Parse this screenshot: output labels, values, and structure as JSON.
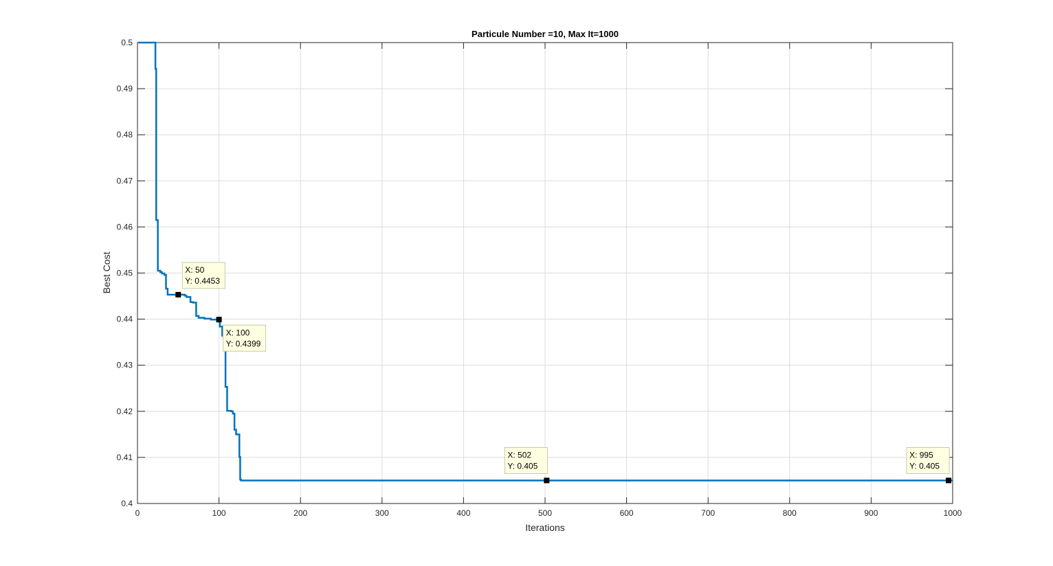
{
  "chart_data": {
    "type": "line",
    "title": "Particule Number =10, Max It=1000",
    "xlabel": "Iterations",
    "ylabel": "Best Cost",
    "xlim": [
      0,
      1000
    ],
    "ylim": [
      0.4,
      0.5
    ],
    "xticks": [
      0,
      100,
      200,
      300,
      400,
      500,
      600,
      700,
      800,
      900,
      1000
    ],
    "yticks": [
      0.4,
      0.41,
      0.42,
      0.43,
      0.44,
      0.45,
      0.46,
      0.47,
      0.48,
      0.49,
      0.5
    ],
    "xtick_labels": [
      "0",
      "100",
      "200",
      "300",
      "400",
      "500",
      "600",
      "700",
      "800",
      "900",
      "1000"
    ],
    "ytick_labels": [
      "0.4",
      "0.41",
      "0.42",
      "0.43",
      "0.44",
      "0.45",
      "0.46",
      "0.47",
      "0.48",
      "0.49",
      "0.5"
    ],
    "grid": true,
    "line_color": "#0072BD",
    "series": [
      {
        "style": "step",
        "x": [
          1,
          21,
          22,
          23,
          25,
          28,
          30,
          33,
          35,
          37,
          50,
          58,
          60,
          65,
          68,
          72,
          75,
          82,
          90,
          100,
          101,
          104,
          106,
          108,
          110,
          112,
          115,
          117,
          119,
          121,
          124,
          125,
          126,
          127,
          1000
        ],
        "y": [
          0.5,
          0.5,
          0.4943,
          0.4615,
          0.4505,
          0.4502,
          0.4499,
          0.4496,
          0.4466,
          0.4453,
          0.4453,
          0.4451,
          0.4448,
          0.4437,
          0.4436,
          0.4407,
          0.4403,
          0.4401,
          0.4399,
          0.4399,
          0.4384,
          0.4364,
          0.4357,
          0.4253,
          0.4201,
          0.4201,
          0.42,
          0.4195,
          0.416,
          0.415,
          0.415,
          0.4101,
          0.4052,
          0.405,
          0.405
        ]
      }
    ],
    "datatips": [
      {
        "x": 50,
        "y": 0.4453,
        "label_x": "X: 50",
        "label_y": "Y: 0.4453",
        "placement": "above-right"
      },
      {
        "x": 100,
        "y": 0.4399,
        "label_x": "X: 100",
        "label_y": "Y: 0.4399",
        "placement": "below-right"
      },
      {
        "x": 502,
        "y": 0.405,
        "label_x": "X: 502",
        "label_y": "Y: 0.405",
        "placement": "above-left"
      },
      {
        "x": 995,
        "y": 0.405,
        "label_x": "X: 995",
        "label_y": "Y: 0.405",
        "placement": "above-left"
      }
    ]
  }
}
